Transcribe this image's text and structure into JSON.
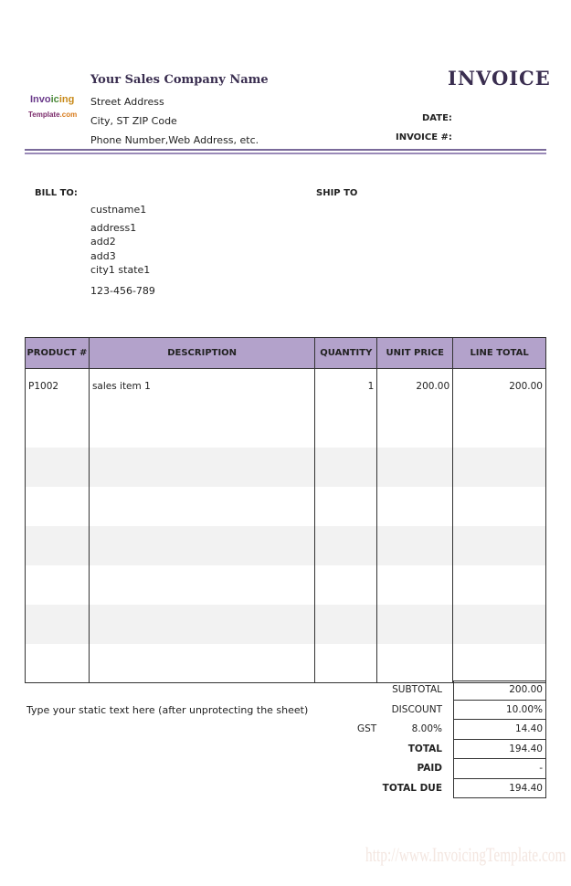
{
  "company": {
    "name": "Your Sales Company Name",
    "street": "Street Address",
    "city": "City, ST  ZIP Code",
    "phone": "Phone Number,Web Address, etc."
  },
  "logo": {
    "line1a": "Invo",
    "line1b": "ic",
    "line1c": "ing",
    "line2a": "Template",
    "line2b": ".com"
  },
  "invoice": {
    "title": "INVOICE",
    "date_label": "DATE:",
    "number_label": "INVOICE #:"
  },
  "bill_to": {
    "label": "BILL TO:",
    "name": "custname1",
    "address1": "address1",
    "add2": "add2",
    "add3": "add3",
    "city": "city1 state1",
    "phone": "123-456-789"
  },
  "ship_to": {
    "label": "SHIP TO"
  },
  "table": {
    "headers": [
      "PRODUCT #",
      "DESCRIPTION",
      "QUANTITY",
      "UNIT PRICE",
      "LINE TOTAL"
    ],
    "rows": [
      [
        "P1002",
        "sales item 1",
        "1",
        "200.00",
        "200.00"
      ],
      [
        "",
        "",
        "",
        "",
        ""
      ],
      [
        "",
        "",
        "",
        "",
        ""
      ],
      [
        "",
        "",
        "",
        "",
        ""
      ],
      [
        "",
        "",
        "",
        "",
        ""
      ],
      [
        "",
        "",
        "",
        "",
        ""
      ],
      [
        "",
        "",
        "",
        "",
        ""
      ],
      [
        "",
        "",
        "",
        "",
        ""
      ]
    ]
  },
  "static_text": "Type your static text here (after unprotecting the sheet)",
  "totals": {
    "subtotal_label": "SUBTOTAL",
    "subtotal": "200.00",
    "discount_label": "DISCOUNT",
    "discount": "10.00%",
    "gst_label": "GST",
    "gst_rate": "8.00%",
    "gst": "14.40",
    "total_label": "TOTAL",
    "total": "194.40",
    "paid_label": "PAID",
    "paid": "-",
    "due_label": "TOTAL DUE",
    "due": "194.40"
  },
  "watermark": "http://www.InvoicingTemplate.com",
  "colors": {
    "header_fill": "#b3a2cb",
    "title": "#3a2e50"
  }
}
